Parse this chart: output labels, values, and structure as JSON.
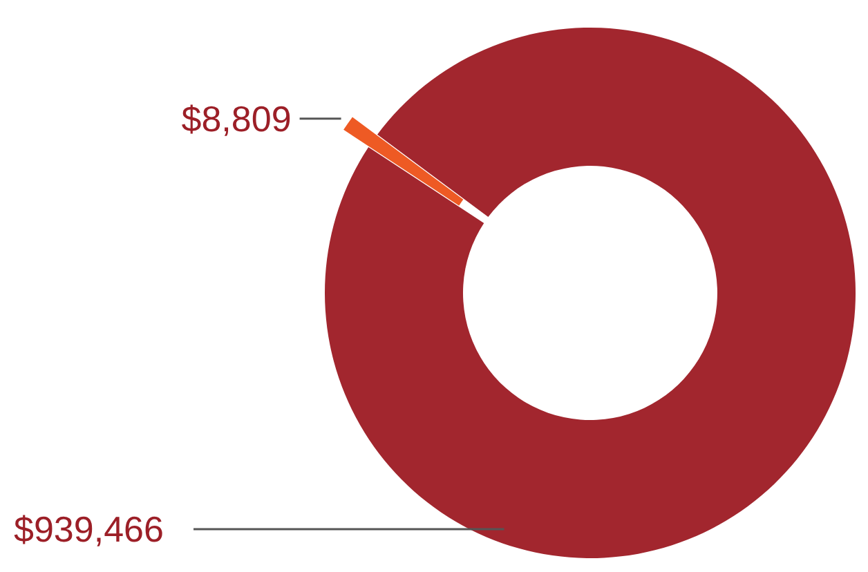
{
  "chart_data": {
    "type": "donut",
    "categories": [
      null,
      null
    ],
    "values": [
      8809,
      939466
    ],
    "colors": [
      "#ee5a24",
      "#a2262e"
    ],
    "value_labels": [
      "$8,809",
      "$939,466"
    ]
  }
}
